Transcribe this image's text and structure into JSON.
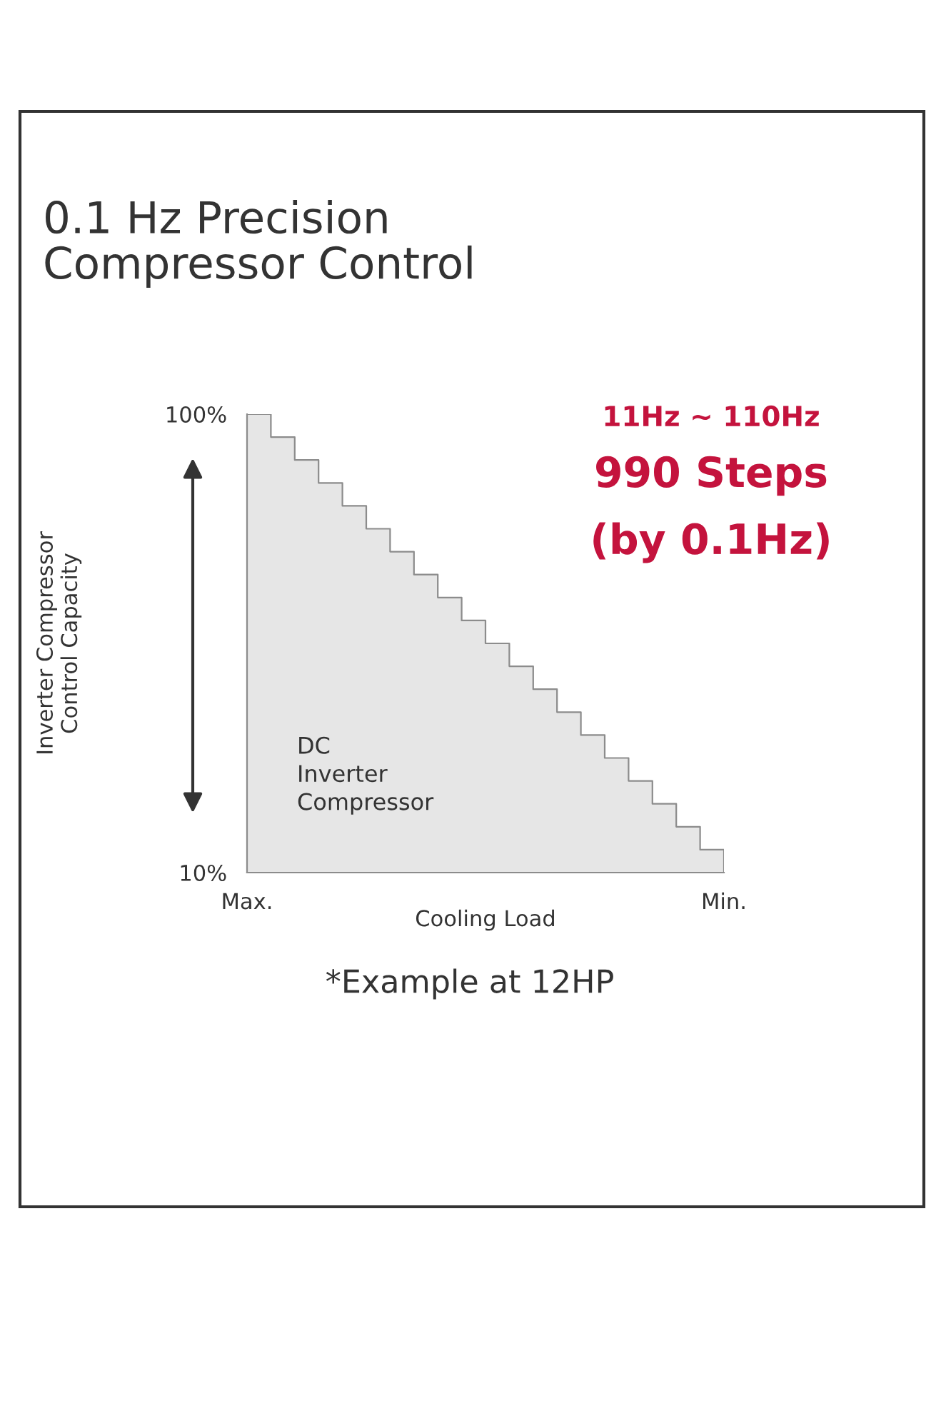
{
  "chart_data": {
    "type": "step",
    "title": "0.1 Hz Precision\nCompressor Control",
    "xlabel": "Cooling Load",
    "ylabel": "Inverter Compressor\nControl Capacity",
    "categories": [
      "Max.",
      null,
      null,
      null,
      null,
      null,
      null,
      null,
      null,
      null,
      null,
      null,
      null,
      null,
      null,
      null,
      null,
      null,
      null,
      null,
      "Min."
    ],
    "series": [
      {
        "color": "#8c8c8c",
        "values": [
          100,
          95.5,
          91,
          86.5,
          82,
          77.5,
          73,
          68.5,
          64,
          59.5,
          55,
          50.5,
          46,
          41.5,
          37,
          32.5,
          28,
          23.5,
          19,
          14.5,
          10
        ]
      }
    ],
    "ylim": [
      10,
      100
    ],
    "yticks": [
      {
        "value": 10,
        "label": "10%"
      },
      {
        "value": 100,
        "label": "100%"
      }
    ],
    "annotations": [
      "11Hz ~ 110Hz",
      "990 Steps",
      "(by 0.1Hz)",
      "DC\nInverter\nCompressor",
      "*Example at 12HP"
    ],
    "grid": false,
    "legend": false
  }
}
